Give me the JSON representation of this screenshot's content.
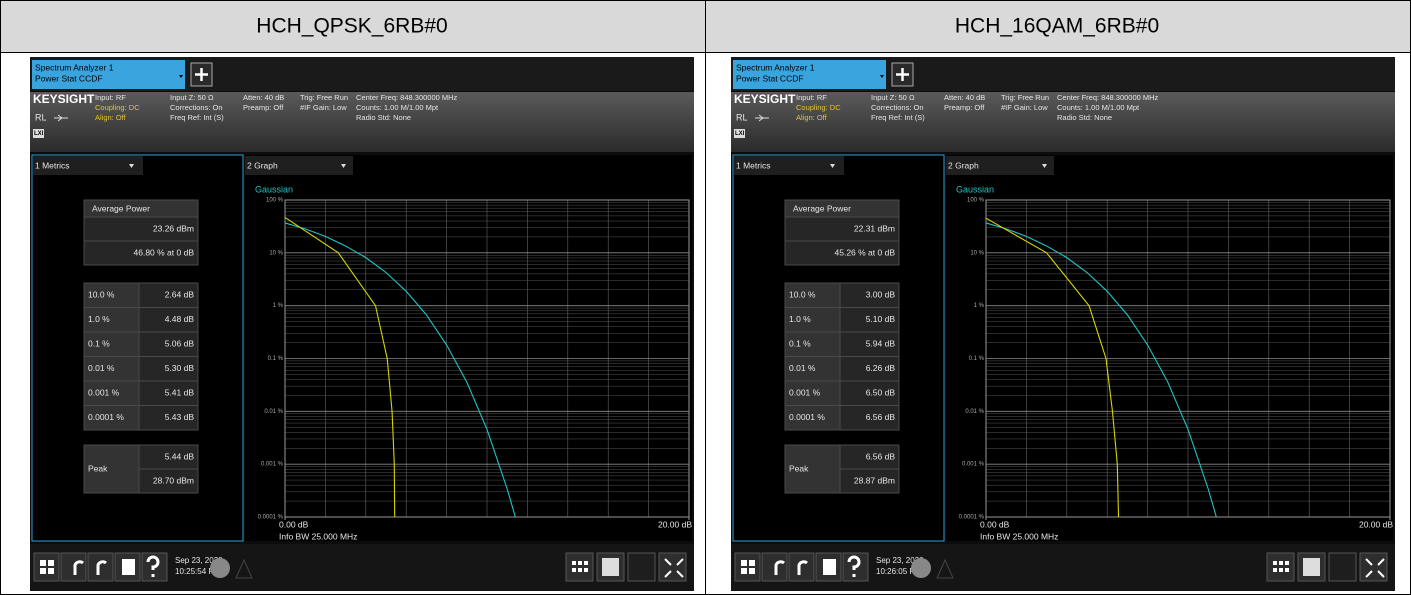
{
  "panels": [
    {
      "title": "HCH_QPSK_6RB#0",
      "tab": {
        "line1": "Spectrum Analyzer 1",
        "line2": "Power Stat CCDF"
      },
      "info": {
        "brand": "KEYSIGHT",
        "input": "Input: RF",
        "coupling": "Coupling: DC",
        "align": "Align: Off",
        "rl": "RL",
        "lxi": "LXI",
        "input_z": "Input Z: 50 Ω",
        "corrections": "Corrections: On",
        "freq_ref": "Freq Ref: Int (S)",
        "atten": "Atten: 40 dB",
        "preamp": "Preamp: Off",
        "trig": "Trig: Free Run",
        "if_gain": "#IF Gain: Low",
        "center_freq": "Center Freq: 848.300000 MHz",
        "counts": "Counts: 1.00 M/1.00 Mpt",
        "radio_std": "Radio Std: None"
      },
      "metrics": {
        "header": "1 Metrics",
        "average_power_label": "Average Power",
        "average_power": "23.26 dBm",
        "at_0_db": "46.80 % at 0 dB",
        "rows": [
          [
            "10.0 %",
            "2.64 dB"
          ],
          [
            "1.0 %",
            "4.48 dB"
          ],
          [
            "0.1 %",
            "5.06 dB"
          ],
          [
            "0.01 %",
            "5.30 dB"
          ],
          [
            "0.001 %",
            "5.41 dB"
          ],
          [
            "0.0001 %",
            "5.43 dB"
          ]
        ],
        "peak_label": "Peak",
        "peak_db": "5.44 dB",
        "peak_dbm": "28.70 dBm"
      },
      "graph": {
        "type": "line",
        "header": "2 Graph",
        "log_y": true,
        "grid": true,
        "info_bw": "Info BW 25.000 MHz",
        "xlim": [
          0,
          20
        ],
        "ylim": [
          0.0001,
          100
        ],
        "xticks": [
          {
            "value": 0,
            "label": "0.00 dB"
          },
          {
            "value": 20,
            "label": "20.00 dB"
          }
        ],
        "yticks": [
          {
            "value": 100,
            "label": "100 %"
          },
          {
            "value": 10,
            "label": "10 %"
          },
          {
            "value": 1,
            "label": "1 %"
          },
          {
            "value": 0.1,
            "label": "0.1 %"
          },
          {
            "value": 0.01,
            "label": "0.01 %"
          },
          {
            "value": 0.001,
            "label": "0.001 %"
          },
          {
            "value": 0.0001,
            "label": "0.0001 %"
          }
        ],
        "series": [
          {
            "color": "#d6d600",
            "x": [
              0,
              2.64,
              4.48,
              5.06,
              5.3,
              5.41,
              5.43
            ],
            "values": [
              46.8,
              10,
              1,
              0.1,
              0.01,
              0.001,
              0.0001
            ]
          },
          {
            "name": "Gaussian",
            "color": "#1fc4c4",
            "x": [
              0,
              1,
              2,
              3,
              4,
              5,
              6,
              7,
              8,
              9,
              10,
              11,
              11.4
            ],
            "values": [
              36.79,
              28.38,
              20.5,
              13.5,
              8.11,
              4.24,
              1.87,
              0.67,
              0.18,
              0.0357,
              0.00454,
              0.000339,
              0.000101
            ]
          }
        ]
      },
      "taskbar": {
        "date": "Sep 23, 2020",
        "time": "10:25:54 PM"
      }
    },
    {
      "title": "HCH_16QAM_6RB#0",
      "tab": {
        "line1": "Spectrum Analyzer 1",
        "line2": "Power Stat CCDF"
      },
      "info": {
        "brand": "KEYSIGHT",
        "input": "Input: RF",
        "coupling": "Coupling: DC",
        "align": "Align: Off",
        "rl": "RL",
        "lxi": "LXI",
        "input_z": "Input Z: 50 Ω",
        "corrections": "Corrections: On",
        "freq_ref": "Freq Ref: Int (S)",
        "atten": "Atten: 40 dB",
        "preamp": "Preamp: Off",
        "trig": "Trig: Free Run",
        "if_gain": "#IF Gain: Low",
        "center_freq": "Center Freq: 848.300000 MHz",
        "counts": "Counts: 1.00 M/1.00 Mpt",
        "radio_std": "Radio Std: None"
      },
      "metrics": {
        "header": "1 Metrics",
        "average_power_label": "Average Power",
        "average_power": "22.31 dBm",
        "at_0_db": "45.26 % at 0 dB",
        "rows": [
          [
            "10.0 %",
            "3.00 dB"
          ],
          [
            "1.0 %",
            "5.10 dB"
          ],
          [
            "0.1 %",
            "5.94 dB"
          ],
          [
            "0.01 %",
            "6.26 dB"
          ],
          [
            "0.001 %",
            "6.50 dB"
          ],
          [
            "0.0001 %",
            "6.56 dB"
          ]
        ],
        "peak_label": "Peak",
        "peak_db": "6.56 dB",
        "peak_dbm": "28.87 dBm"
      },
      "graph": {
        "type": "line",
        "header": "2 Graph",
        "log_y": true,
        "grid": true,
        "info_bw": "Info BW 25.000 MHz",
        "xlim": [
          0,
          20
        ],
        "ylim": [
          0.0001,
          100
        ],
        "xticks": [
          {
            "value": 0,
            "label": "0.00 dB"
          },
          {
            "value": 20,
            "label": "20.00 dB"
          }
        ],
        "yticks": [
          {
            "value": 100,
            "label": "100 %"
          },
          {
            "value": 10,
            "label": "10 %"
          },
          {
            "value": 1,
            "label": "1 %"
          },
          {
            "value": 0.1,
            "label": "0.1 %"
          },
          {
            "value": 0.01,
            "label": "0.01 %"
          },
          {
            "value": 0.001,
            "label": "0.001 %"
          },
          {
            "value": 0.0001,
            "label": "0.0001 %"
          }
        ],
        "series": [
          {
            "color": "#d6d600",
            "x": [
              0,
              3.0,
              5.1,
              5.94,
              6.26,
              6.5,
              6.56
            ],
            "values": [
              45.26,
              10,
              1,
              0.1,
              0.01,
              0.001,
              0.0001
            ]
          },
          {
            "name": "Gaussian",
            "color": "#1fc4c4",
            "x": [
              0,
              1,
              2,
              3,
              4,
              5,
              6,
              7,
              8,
              9,
              10,
              11,
              11.4
            ],
            "values": [
              36.79,
              28.38,
              20.5,
              13.5,
              8.11,
              4.24,
              1.87,
              0.67,
              0.18,
              0.0357,
              0.00454,
              0.000339,
              0.000101
            ]
          }
        ]
      },
      "taskbar": {
        "date": "Sep 23, 2020",
        "time": "10:26:05 PM"
      }
    }
  ]
}
